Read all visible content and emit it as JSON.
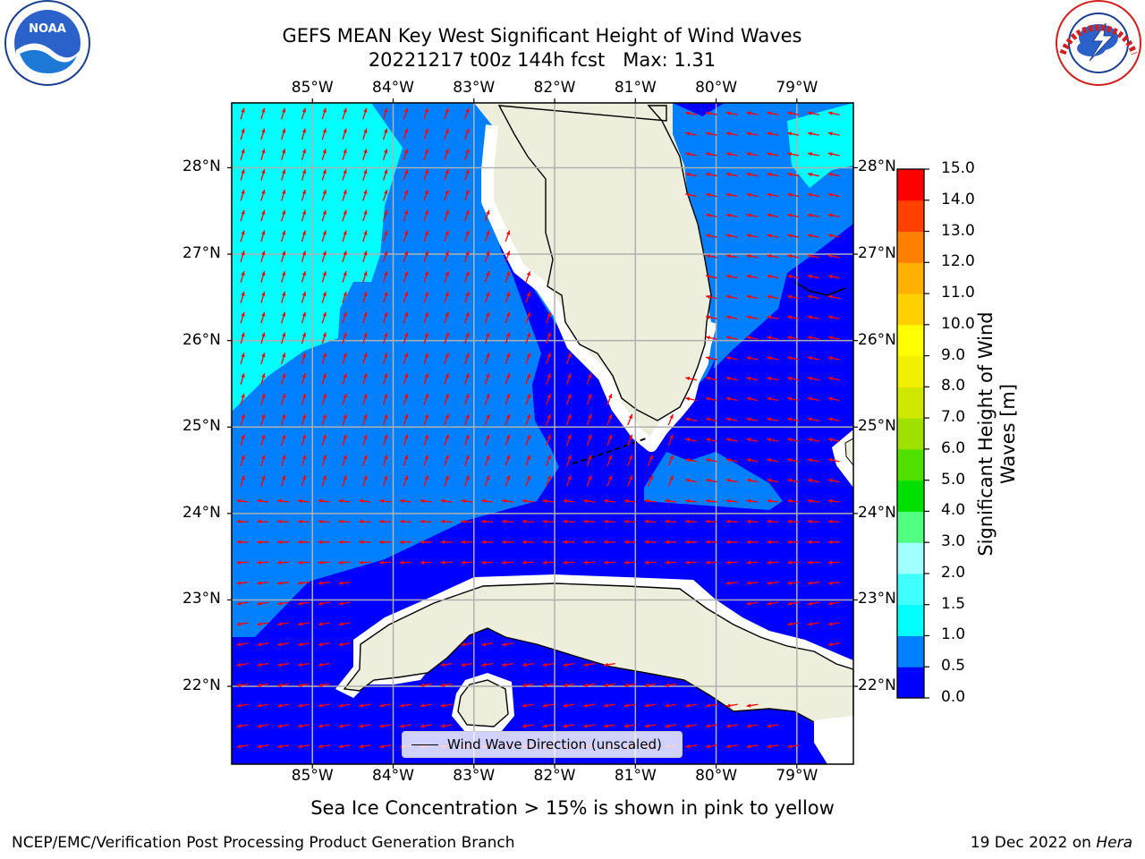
{
  "header": {
    "title_line1": "GEFS MEAN Key West Significant Height of Wind Waves",
    "title_line2": "20221217 t00z 144h fcst   Max: 1.31"
  },
  "logos": {
    "left": {
      "name": "noaa-logo",
      "text": "NOAA",
      "ring_text": "NATIONAL OCEANIC AND ATMOSPHERIC ADMINISTRATION · U.S. DEPARTMENT OF COMMERCE"
    },
    "right": {
      "name": "nws-logo",
      "ring_text": "NATIONAL WEATHER SERVICE"
    }
  },
  "map": {
    "lon_labels": [
      "85°W",
      "84°W",
      "83°W",
      "82°W",
      "81°W",
      "80°W",
      "79°W"
    ],
    "lat_labels": [
      "28°N",
      "27°N",
      "26°N",
      "25°N",
      "24°N",
      "23°N",
      "22°N"
    ],
    "lon_range": [
      -86.0,
      -78.3
    ],
    "lat_range": [
      21.1,
      28.75
    ],
    "legend_label": "Wind Wave Direction (unscaled)",
    "colors": {
      "land": "#eeeedc",
      "coast": "#000000",
      "arrow": "#ff0000",
      "grid": "#b0b0b0",
      "band_0_0.5": "#0000ff",
      "band_0.5_1.0": "#0080ff",
      "band_1.0_1.5": "#00ffff"
    }
  },
  "colorbar": {
    "label": "Significant Height of Wind\nWaves [m]",
    "ticks": [
      "0.0",
      "0.5",
      "1.0",
      "1.5",
      "2.0",
      "3.0",
      "4.0",
      "5.0",
      "6.0",
      "7.0",
      "8.0",
      "9.0",
      "10.0",
      "11.0",
      "12.0",
      "13.0",
      "14.0",
      "15.0"
    ],
    "colors": [
      "#0000ff",
      "#0080ff",
      "#00ffff",
      "#40ffff",
      "#a0ffff",
      "#50ff80",
      "#00e000",
      "#50e000",
      "#a0e000",
      "#d0e800",
      "#f0f000",
      "#ffff00",
      "#ffd000",
      "#ffb000",
      "#ff8000",
      "#ff4000",
      "#ff0000"
    ]
  },
  "footer": {
    "subtitle": "Sea Ice Concentration > 15% is shown in pink to yellow",
    "left": "NCEP/EMC/Verification Post Processing Product Generation Branch",
    "right_date": "19 Dec 2022 on",
    "right_host": "Hera"
  }
}
